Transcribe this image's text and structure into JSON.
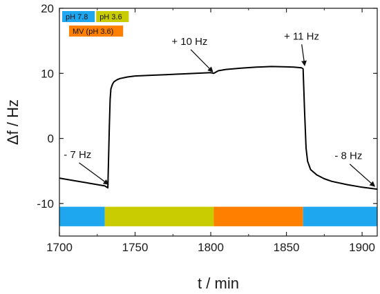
{
  "chart_data": {
    "type": "line",
    "xlabel": "t / min",
    "ylabel": "Δf / Hz",
    "xlim": [
      1700,
      1910
    ],
    "ylim": [
      -15,
      20
    ],
    "x_ticks": [
      1700,
      1750,
      1800,
      1850,
      1900
    ],
    "y_ticks": [
      -10,
      0,
      10,
      20
    ],
    "grid": false,
    "series": [
      {
        "color": "#000000",
        "x": [
          1700,
          1710,
          1720,
          1730,
          1732,
          1733,
          1733.5,
          1734,
          1735,
          1736,
          1738,
          1740,
          1745,
          1750,
          1760,
          1770,
          1780,
          1790,
          1800,
          1802,
          1805,
          1810,
          1820,
          1830,
          1840,
          1850,
          1855,
          1860,
          1861,
          1862,
          1863,
          1864,
          1866,
          1870,
          1875,
          1880,
          1890,
          1900,
          1910
        ],
        "y": [
          -6.1,
          -6.5,
          -6.9,
          -7.3,
          -7.6,
          2.0,
          6.0,
          7.6,
          8.3,
          8.7,
          9.0,
          9.2,
          9.45,
          9.6,
          9.7,
          9.8,
          9.9,
          10.0,
          10.1,
          10.0,
          10.4,
          10.6,
          10.8,
          10.95,
          11.05,
          11.0,
          10.95,
          10.85,
          10.7,
          4.0,
          -1.5,
          -3.5,
          -4.8,
          -5.6,
          -6.2,
          -6.6,
          -7.1,
          -7.5,
          -7.8
        ]
      }
    ],
    "annotations": [
      {
        "text": "- 7 Hz",
        "x": 1712,
        "y": -3.0,
        "point_x": 1732,
        "point_y": -7.0
      },
      {
        "text": "+ 10 Hz",
        "x": 1786,
        "y": 14.4,
        "point_x": 1801,
        "point_y": 10.3
      },
      {
        "text": "+ 11 Hz",
        "x": 1860,
        "y": 15.2,
        "point_x": 1862,
        "point_y": 11.3
      },
      {
        "text": "- 8 Hz",
        "x": 1891,
        "y": -3.2,
        "point_x": 1908,
        "point_y": -7.3
      }
    ],
    "condition_bar": {
      "y_range": [
        -13.5,
        -10.5
      ],
      "segments": [
        {
          "label": "pH 7.8",
          "start": 1700,
          "end": 1730,
          "color": "#1ea7ef"
        },
        {
          "label": "pH 3.6",
          "start": 1730,
          "end": 1802,
          "color": "#c9cc00"
        },
        {
          "label": "MV (pH 3.6)",
          "start": 1802,
          "end": 1861,
          "color": "#ff8000"
        },
        {
          "label": "pH 7.8",
          "start": 1861,
          "end": 1910,
          "color": "#1ea7ef"
        }
      ]
    },
    "legend": {
      "placement": "top-left",
      "rows": [
        [
          {
            "label": "pH 7.8",
            "color": "#1ea7ef"
          },
          {
            "label": "pH 3.6",
            "color": "#c9cc00"
          }
        ],
        [
          {
            "label": "MV (pH 3.6)",
            "color": "#ff8000"
          }
        ]
      ]
    }
  }
}
